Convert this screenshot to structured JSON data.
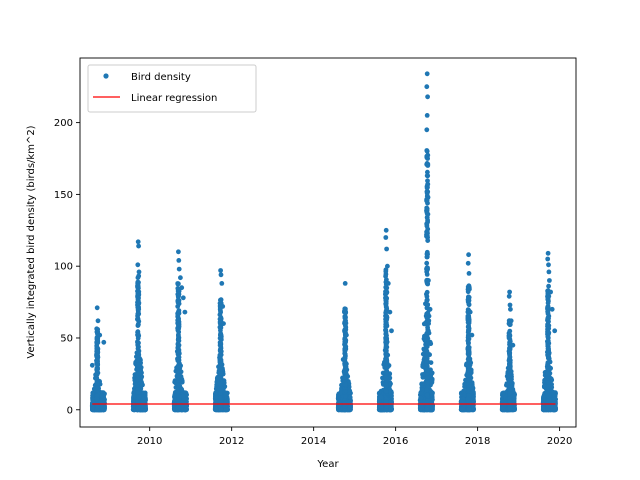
{
  "chart_data": {
    "type": "scatter",
    "title": "",
    "xlabel": "Year",
    "ylabel": "Vertically integrated bird density (birds/km^2)",
    "xlim": [
      2008.3,
      2020.4
    ],
    "ylim": [
      -12,
      245
    ],
    "xticks": [
      2010,
      2012,
      2014,
      2016,
      2018,
      2020
    ],
    "yticks": [
      0,
      50,
      100,
      150,
      200
    ],
    "grid": false,
    "legend_position": "top-left",
    "colors": {
      "scatter": "#1f77b4",
      "regression": "#ff0000",
      "axes": "#000000"
    },
    "series": [
      {
        "name": "Bird density",
        "kind": "scatter",
        "seasons": [
          {
            "x_range": [
              2008.6,
              2008.9
            ],
            "peak_x": 2008.72,
            "peak_y": 71,
            "tall_spikes": [
              [
                2008.72,
                71
              ],
              [
                2008.74,
                62
              ],
              [
                2008.78,
                52
              ],
              [
                2008.88,
                47
              ],
              [
                2008.6,
                31
              ]
            ]
          },
          {
            "x_range": [
              2009.6,
              2009.9
            ],
            "peak_x": 2009.72,
            "peak_y": 117,
            "tall_spikes": [
              [
                2009.72,
                117
              ],
              [
                2009.73,
                114
              ],
              [
                2009.71,
                101
              ],
              [
                2009.74,
                96
              ],
              [
                2009.72,
                86
              ],
              [
                2009.73,
                74
              ],
              [
                2009.7,
                63
              ]
            ]
          },
          {
            "x_range": [
              2010.6,
              2010.9
            ],
            "peak_x": 2010.7,
            "peak_y": 110,
            "tall_spikes": [
              [
                2010.7,
                110
              ],
              [
                2010.71,
                104
              ],
              [
                2010.72,
                98
              ],
              [
                2010.75,
                92
              ],
              [
                2010.78,
                85
              ],
              [
                2010.82,
                78
              ],
              [
                2010.86,
                68
              ]
            ]
          },
          {
            "x_range": [
              2011.6,
              2011.9
            ],
            "peak_x": 2011.73,
            "peak_y": 97,
            "tall_spikes": [
              [
                2011.73,
                97
              ],
              [
                2011.74,
                94
              ],
              [
                2011.76,
                88
              ],
              [
                2011.78,
                72
              ],
              [
                2011.8,
                60
              ]
            ]
          },
          {
            "x_range": [
              2014.6,
              2014.9
            ],
            "peak_x": 2014.77,
            "peak_y": 88,
            "tall_spikes": [
              [
                2014.77,
                88
              ],
              [
                2014.75,
                68
              ],
              [
                2014.78,
                62
              ],
              [
                2014.8,
                52
              ],
              [
                2014.72,
                35
              ]
            ]
          },
          {
            "x_range": [
              2015.6,
              2015.9
            ],
            "peak_x": 2015.77,
            "peak_y": 125,
            "tall_spikes": [
              [
                2015.77,
                125
              ],
              [
                2015.76,
                120
              ],
              [
                2015.78,
                112
              ],
              [
                2015.8,
                100
              ],
              [
                2015.82,
                88
              ],
              [
                2015.86,
                68
              ],
              [
                2015.9,
                55
              ]
            ]
          },
          {
            "x_range": [
              2016.6,
              2016.9
            ],
            "peak_x": 2016.77,
            "peak_y": 234,
            "tall_spikes": [
              [
                2016.77,
                234
              ],
              [
                2016.76,
                225
              ],
              [
                2016.78,
                218
              ],
              [
                2016.77,
                205
              ],
              [
                2016.76,
                195
              ],
              [
                2016.77,
                180
              ],
              [
                2016.78,
                175
              ],
              [
                2016.77,
                163
              ],
              [
                2016.78,
                157
              ],
              [
                2016.79,
                148
              ],
              [
                2016.77,
                140
              ],
              [
                2016.78,
                132
              ],
              [
                2016.8,
                90
              ],
              [
                2016.84,
                70
              ]
            ]
          },
          {
            "x_range": [
              2017.6,
              2017.9
            ],
            "peak_x": 2017.78,
            "peak_y": 108,
            "tall_spikes": [
              [
                2017.78,
                108
              ],
              [
                2017.77,
                102
              ],
              [
                2017.79,
                95
              ],
              [
                2017.8,
                84
              ],
              [
                2017.82,
                68
              ],
              [
                2017.86,
                52
              ]
            ]
          },
          {
            "x_range": [
              2018.6,
              2018.9
            ],
            "peak_x": 2018.78,
            "peak_y": 82,
            "tall_spikes": [
              [
                2018.78,
                82
              ],
              [
                2018.77,
                79
              ],
              [
                2018.79,
                73
              ],
              [
                2018.8,
                70
              ],
              [
                2018.82,
                62
              ],
              [
                2018.86,
                45
              ]
            ]
          },
          {
            "x_range": [
              2019.6,
              2019.9
            ],
            "peak_x": 2019.72,
            "peak_y": 109,
            "tall_spikes": [
              [
                2019.72,
                109
              ],
              [
                2019.71,
                105
              ],
              [
                2019.73,
                101
              ],
              [
                2019.74,
                96
              ],
              [
                2019.75,
                90
              ],
              [
                2019.78,
                82
              ],
              [
                2019.82,
                70
              ],
              [
                2019.88,
                55
              ]
            ]
          }
        ]
      },
      {
        "name": "Linear regression",
        "kind": "line",
        "x": [
          2008.6,
          2019.9
        ],
        "y": [
          4,
          4
        ]
      }
    ]
  }
}
